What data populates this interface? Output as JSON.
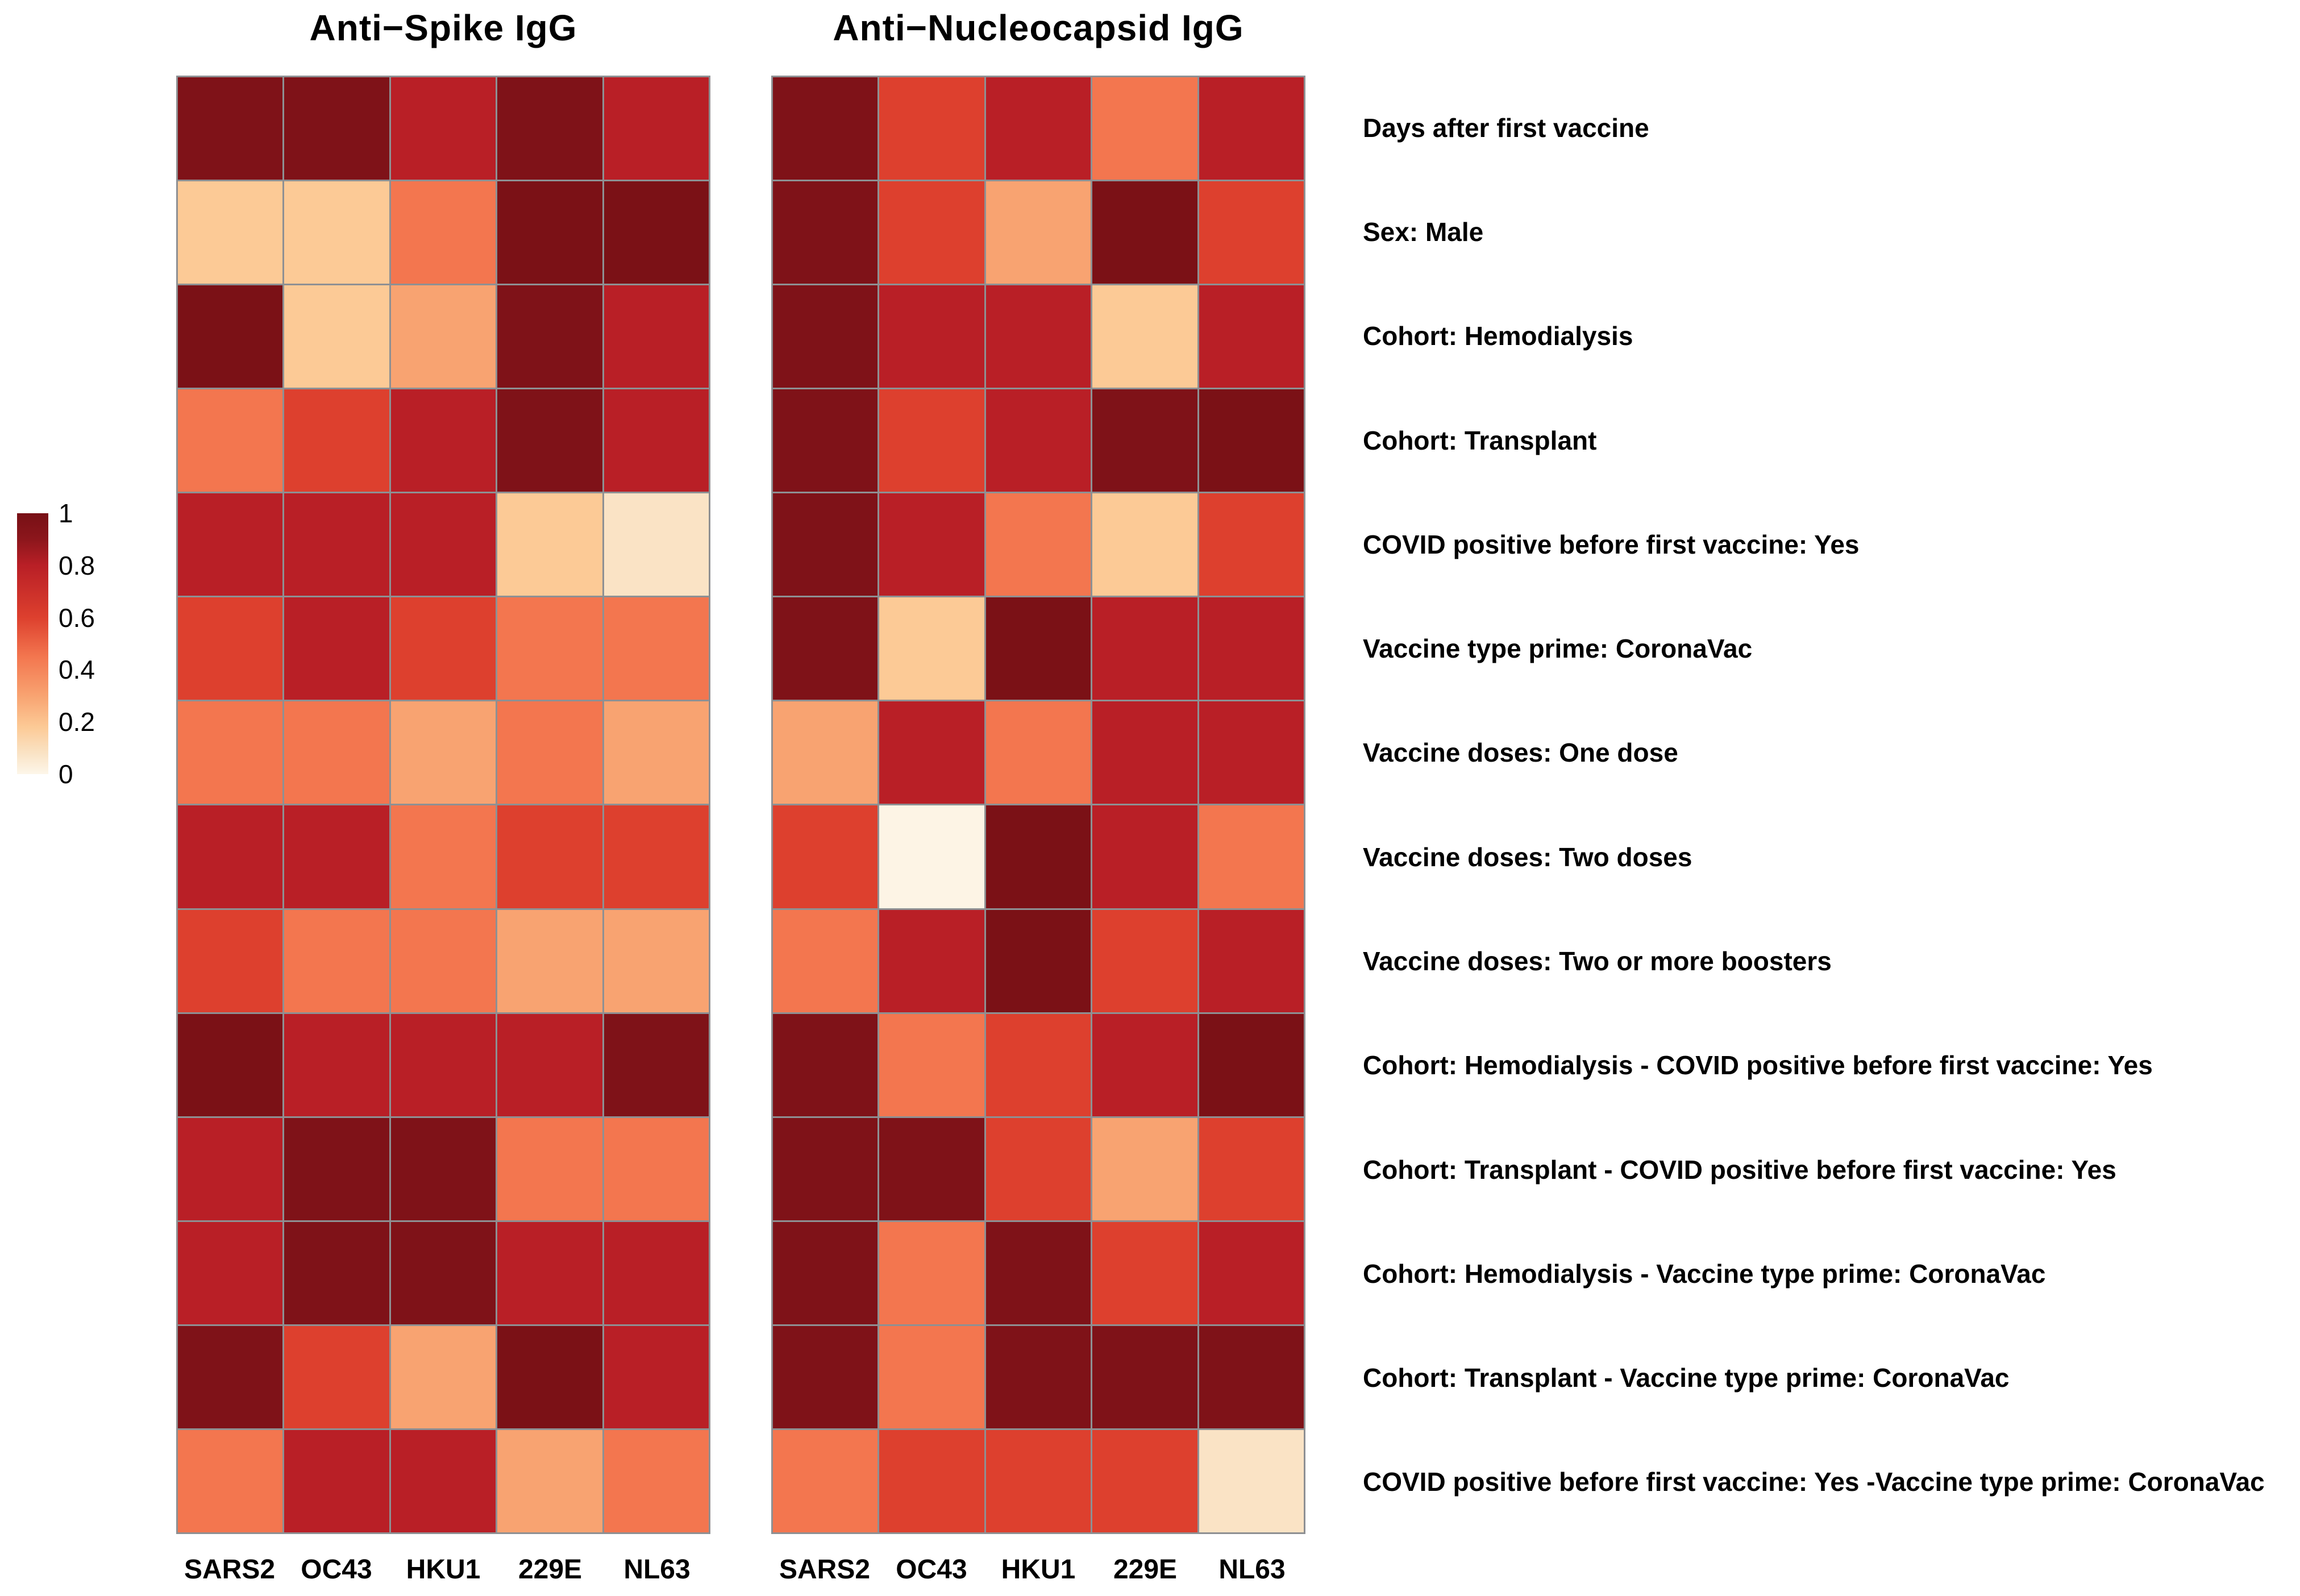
{
  "chart_data": {
    "type": "heatmap",
    "columns": [
      "SARS2",
      "OC43",
      "HKU1",
      "229E",
      "NL63"
    ],
    "row_labels": [
      "Days after first vaccine",
      "Sex: Male",
      "Cohort: Hemodialysis",
      "Cohort: Transplant",
      "COVID positive before first vaccine: Yes",
      "Vaccine type prime: CoronaVac",
      "Vaccine doses: One dose",
      "Vaccine doses: Two doses",
      "Vaccine doses: Two or more boosters",
      "Cohort: Hemodialysis - COVID positive before first vaccine: Yes",
      "Cohort: Transplant - COVID positive before first vaccine: Yes",
      "Cohort: Hemodialysis - Vaccine type prime: CoronaVac",
      "Cohort: Transplant - Vaccine type prime: CoronaVac",
      "COVID positive before first vaccine: Yes -Vaccine type prime: CoronaVac"
    ],
    "series": [
      {
        "name": "Anti−Spike IgG",
        "values": [
          [
            0.96,
            0.96,
            0.8,
            0.96,
            0.8
          ],
          [
            0.18,
            0.18,
            0.45,
            0.98,
            0.98
          ],
          [
            0.98,
            0.18,
            0.3,
            0.96,
            0.8
          ],
          [
            0.45,
            0.6,
            0.8,
            0.96,
            0.8
          ],
          [
            0.8,
            0.8,
            0.8,
            0.18,
            0.08
          ],
          [
            0.6,
            0.8,
            0.6,
            0.45,
            0.45
          ],
          [
            0.45,
            0.45,
            0.3,
            0.45,
            0.3
          ],
          [
            0.8,
            0.8,
            0.45,
            0.6,
            0.6
          ],
          [
            0.6,
            0.45,
            0.45,
            0.3,
            0.3
          ],
          [
            0.98,
            0.8,
            0.8,
            0.8,
            0.96
          ],
          [
            0.8,
            0.96,
            0.96,
            0.45,
            0.45
          ],
          [
            0.8,
            0.96,
            0.96,
            0.8,
            0.8
          ],
          [
            0.96,
            0.6,
            0.3,
            0.98,
            0.8
          ],
          [
            0.45,
            0.8,
            0.8,
            0.3,
            0.45
          ]
        ]
      },
      {
        "name": "Anti−Nucleocapsid IgG",
        "values": [
          [
            0.96,
            0.6,
            0.8,
            0.45,
            0.8
          ],
          [
            0.96,
            0.6,
            0.3,
            0.98,
            0.6
          ],
          [
            0.96,
            0.8,
            0.8,
            0.18,
            0.8
          ],
          [
            0.96,
            0.6,
            0.8,
            0.96,
            0.98
          ],
          [
            0.96,
            0.8,
            0.45,
            0.18,
            0.6
          ],
          [
            0.96,
            0.18,
            0.98,
            0.8,
            0.8
          ],
          [
            0.3,
            0.8,
            0.45,
            0.8,
            0.8
          ],
          [
            0.6,
            0.01,
            0.98,
            0.8,
            0.45
          ],
          [
            0.45,
            0.8,
            0.98,
            0.6,
            0.8
          ],
          [
            0.96,
            0.45,
            0.6,
            0.8,
            0.98
          ],
          [
            0.96,
            0.96,
            0.6,
            0.3,
            0.6
          ],
          [
            0.96,
            0.45,
            0.96,
            0.6,
            0.8
          ],
          [
            0.96,
            0.45,
            0.96,
            0.96,
            0.96
          ],
          [
            0.45,
            0.6,
            0.6,
            0.6,
            0.08
          ]
        ]
      }
    ],
    "value_range": [
      0,
      1
    ],
    "legend_ticks": [
      "1",
      "0.8",
      "0.6",
      "0.4",
      "0.2",
      "0"
    ],
    "legend_position": "left",
    "colormap": [
      [
        0.0,
        "#fdf6e9"
      ],
      [
        0.08,
        "#fae3c5"
      ],
      [
        0.18,
        "#fcca96"
      ],
      [
        0.3,
        "#f8a371"
      ],
      [
        0.45,
        "#f3764f"
      ],
      [
        0.6,
        "#dd402e"
      ],
      [
        0.8,
        "#b91f26"
      ],
      [
        0.9,
        "#8c161c"
      ],
      [
        1.0,
        "#771015"
      ]
    ],
    "grid_line_color": "#8e9093",
    "background": "#ffffff",
    "grid_on": true,
    "xlabel": "",
    "ylabel": "",
    "title": ""
  }
}
